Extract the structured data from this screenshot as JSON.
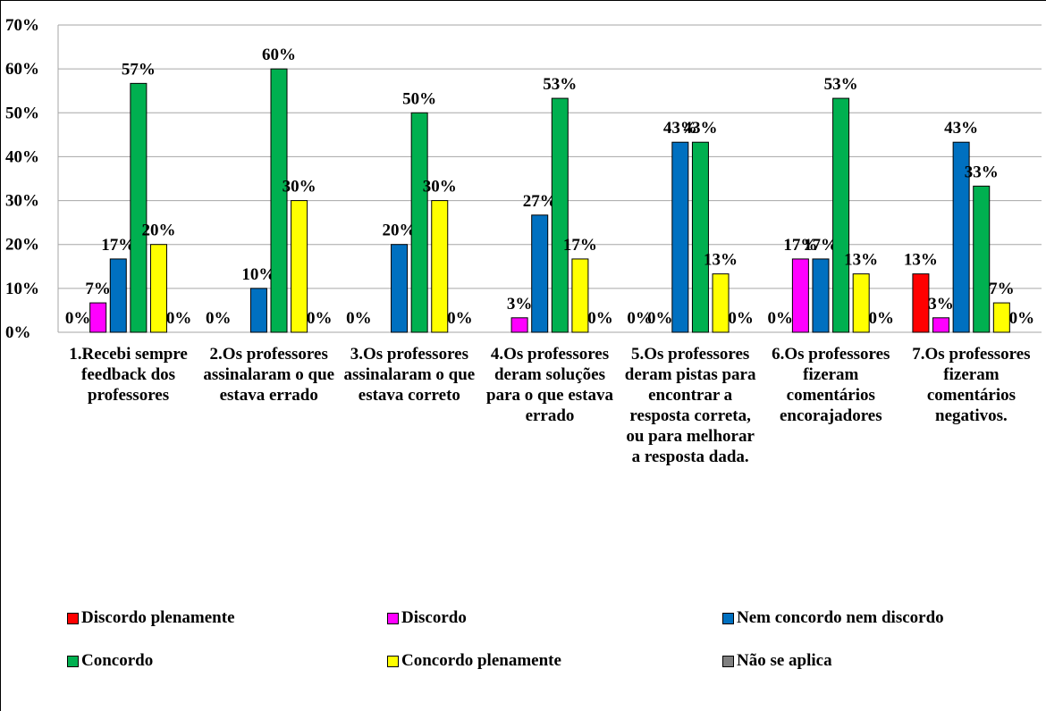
{
  "chart_data": {
    "type": "bar",
    "categories": [
      "1.Recebi sempre feedback dos professores",
      "2.Os professores assinalaram o que estava errado",
      "3.Os professores assinalaram o que estava correto",
      "4.Os professores deram soluções para o que estava errado",
      "5.Os professores deram pistas para encontrar a resposta correta, ou para melhorar a resposta dada.",
      "6.Os professores fizeram comentários encorajadores",
      "7.Os professores fizeram comentários negativos."
    ],
    "series": [
      {
        "name": "Discordo plenamente",
        "color": "#ff0000",
        "values": [
          0,
          0,
          0,
          0,
          0,
          0,
          13.3
        ],
        "value_labels": [
          "0%",
          "0%",
          "0%",
          null,
          "0%",
          "0%",
          "13%"
        ]
      },
      {
        "name": "Discordo",
        "color": "#ff00ff",
        "values": [
          6.7,
          0,
          0,
          3.3,
          0,
          16.7,
          3.3
        ],
        "value_labels": [
          "7%",
          null,
          null,
          "3%",
          "0%",
          "17%",
          "3%"
        ]
      },
      {
        "name": "Nem concordo nem discordo",
        "color": "#0070c0",
        "values": [
          16.7,
          10,
          20,
          26.7,
          43.3,
          16.7,
          43.3
        ],
        "value_labels": [
          "17%",
          "10%",
          "20%",
          "27%",
          "43%",
          "17%",
          "43%"
        ]
      },
      {
        "name": "Concordo",
        "color": "#00b050",
        "values": [
          56.7,
          60,
          50,
          53.3,
          43.3,
          53.3,
          33.3
        ],
        "value_labels": [
          "57%",
          "60%",
          "50%",
          "53%",
          "43%",
          "53%",
          "33%"
        ]
      },
      {
        "name": "Concordo plenamente",
        "color": "#ffff00",
        "values": [
          20,
          30,
          30,
          16.7,
          13.3,
          13.3,
          6.7
        ],
        "value_labels": [
          "20%",
          "30%",
          "30%",
          "17%",
          "13%",
          "13%",
          "7%"
        ]
      },
      {
        "name": "Não se aplica",
        "color": "#808080",
        "values": [
          0,
          0,
          0,
          0,
          0,
          0,
          0
        ],
        "value_labels": [
          "0%",
          "0%",
          "0%",
          "0%",
          "0%",
          "0%",
          "0%"
        ]
      }
    ],
    "ylim": [
      0,
      70
    ],
    "yticks": [
      {
        "value": 0,
        "label": "0%"
      },
      {
        "value": 10,
        "label": "10%"
      },
      {
        "value": 20,
        "label": "20%"
      },
      {
        "value": 30,
        "label": "30%"
      },
      {
        "value": 40,
        "label": "40%"
      },
      {
        "value": 50,
        "label": "50%"
      },
      {
        "value": 60,
        "label": "60%"
      },
      {
        "value": 70,
        "label": "70%"
      }
    ],
    "grid": true,
    "legend": "bottom"
  }
}
